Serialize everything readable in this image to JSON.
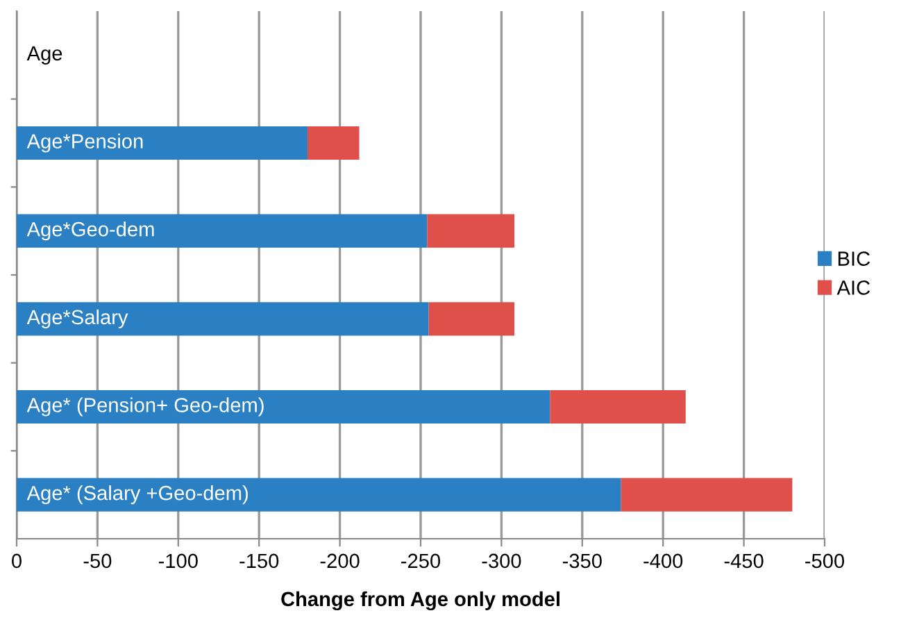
{
  "chart_data": {
    "type": "bar",
    "orientation": "horizontal",
    "stacked": true,
    "xlabel": "Change from Age only model",
    "categories": [
      "Age",
      "Age*Pension",
      "Age*Geo-dem",
      "Age*Salary",
      "Age* (Pension+ Geo-dem)",
      "Age* (Salary +Geo-dem)"
    ],
    "series": [
      {
        "name": "BIC",
        "color": "#2b80c3",
        "values": [
          0,
          -180,
          -254,
          -255,
          -330,
          -374
        ]
      },
      {
        "name": "AIC",
        "color": "#e0504b",
        "values": [
          0,
          -32,
          -54,
          -53,
          -84,
          -106
        ]
      }
    ],
    "xlim": [
      0,
      -500
    ],
    "xticks": [
      0,
      -50,
      -100,
      -150,
      -200,
      -250,
      -300,
      -350,
      -400,
      -450,
      -500
    ],
    "grid": "x",
    "legend": "right"
  }
}
